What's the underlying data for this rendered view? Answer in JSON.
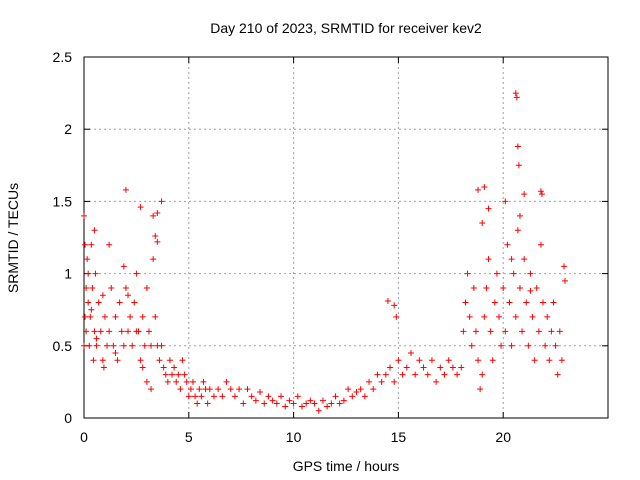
{
  "chart_data": {
    "type": "scatter",
    "title": "Day 210 of 2023, SRMTID for receiver kev2",
    "xlabel": "GPS time / hours",
    "ylabel": "SRMTID / TECUs",
    "xlim": [
      0,
      25
    ],
    "ylim": [
      0,
      2.5
    ],
    "x_ticks": [
      0,
      5,
      10,
      15,
      20
    ],
    "x_tick_labels": [
      "0",
      "5",
      "10",
      "15",
      "20"
    ],
    "y_ticks": [
      0,
      0.5,
      1,
      1.5,
      2,
      2.5
    ],
    "y_tick_labels": [
      "0",
      "0.5",
      "1",
      "1.5",
      "2",
      "2.5"
    ],
    "grid": true,
    "marker": "plus",
    "series": [
      {
        "name": "kev2",
        "color": "#ff0000",
        "x": [
          0.0,
          0.05,
          0.1,
          0.1,
          0.15,
          0.2,
          0.25,
          0.3,
          0.35,
          0.4,
          0.45,
          0.5,
          0.55,
          0.6,
          0.7,
          0.8,
          0.9,
          1.0,
          1.1,
          1.2,
          1.3,
          1.4,
          1.5,
          1.6,
          1.7,
          1.8,
          1.9,
          2.0,
          2.1,
          2.2,
          2.3,
          2.4,
          2.5,
          2.6,
          2.7,
          2.8,
          2.9,
          3.0,
          3.1,
          3.2,
          3.3,
          3.4,
          3.5,
          3.6,
          3.7,
          3.8,
          3.9,
          4.0,
          4.1,
          4.2,
          4.3,
          4.4,
          4.5,
          4.6,
          4.7,
          4.8,
          4.9,
          5.0,
          5.1,
          5.2,
          5.3,
          5.4,
          5.5,
          5.6,
          5.7,
          5.8,
          5.9,
          6.0,
          6.2,
          6.4,
          6.6,
          6.8,
          7.0,
          7.2,
          7.4,
          7.6,
          7.8,
          8.0,
          8.2,
          8.4,
          8.6,
          8.8,
          9.0,
          9.2,
          9.4,
          9.6,
          9.8,
          10.0,
          10.2,
          10.4,
          10.6,
          10.8,
          11.0,
          11.2,
          11.4,
          11.6,
          11.8,
          12.0,
          12.2,
          12.4,
          12.6,
          12.8,
          13.0,
          13.2,
          13.4,
          13.6,
          13.8,
          14.0,
          14.2,
          14.4,
          14.6,
          14.8,
          15.0,
          15.2,
          15.4,
          15.6,
          15.8,
          16.0,
          16.2,
          16.4,
          16.6,
          16.8,
          17.0,
          17.2,
          17.4,
          17.6,
          17.8,
          18.0,
          18.1,
          18.2,
          18.3,
          18.4,
          18.5,
          18.6,
          18.7,
          18.8,
          18.9,
          19.0,
          19.1,
          19.2,
          19.3,
          19.4,
          19.5,
          19.6,
          19.7,
          19.8,
          19.9,
          20.0,
          20.1,
          20.2,
          20.3,
          20.4,
          20.5,
          20.6,
          20.7,
          20.8,
          20.9,
          21.0,
          21.1,
          21.2,
          21.3,
          21.4,
          21.5,
          21.6,
          21.7,
          21.8,
          21.9,
          22.0,
          22.1,
          22.2,
          22.3,
          22.4,
          22.5,
          22.6,
          22.7,
          22.8,
          0.0,
          0.05,
          0.2,
          0.35,
          0.5,
          0.6,
          0.9,
          1.2,
          1.5,
          1.9,
          2.1,
          2.5,
          2.8,
          3.0,
          3.2,
          3.4,
          3.5,
          3.7,
          0.95,
          2.0,
          2.7,
          3.3,
          3.5,
          14.5,
          14.8,
          14.9,
          18.8,
          19.0,
          19.1,
          19.3,
          20.1,
          20.4,
          20.6,
          20.65,
          20.7,
          20.75,
          20.8,
          21.0,
          21.3,
          21.8,
          21.85,
          22.9,
          22.95
        ],
        "y": [
          1.4,
          1.2,
          0.9,
          0.6,
          1.1,
          0.8,
          0.5,
          0.7,
          1.2,
          0.9,
          0.4,
          0.6,
          1.0,
          0.5,
          0.8,
          0.6,
          0.4,
          0.7,
          0.5,
          0.6,
          0.9,
          0.5,
          0.7,
          0.4,
          0.8,
          0.6,
          0.5,
          0.9,
          0.6,
          0.7,
          0.5,
          0.8,
          1.0,
          0.6,
          0.4,
          0.7,
          0.5,
          0.9,
          0.6,
          0.5,
          1.1,
          0.7,
          0.5,
          0.4,
          0.5,
          0.35,
          0.3,
          0.25,
          0.4,
          0.3,
          0.35,
          0.25,
          0.3,
          0.2,
          0.4,
          0.3,
          0.25,
          0.15,
          0.2,
          0.25,
          0.15,
          0.1,
          0.2,
          0.15,
          0.25,
          0.2,
          0.1,
          0.2,
          0.15,
          0.2,
          0.15,
          0.25,
          0.2,
          0.15,
          0.2,
          0.1,
          0.2,
          0.15,
          0.12,
          0.18,
          0.1,
          0.15,
          0.12,
          0.1,
          0.15,
          0.08,
          0.12,
          0.1,
          0.15,
          0.08,
          0.1,
          0.12,
          0.1,
          0.05,
          0.12,
          0.08,
          0.1,
          0.15,
          0.1,
          0.12,
          0.2,
          0.15,
          0.18,
          0.2,
          0.15,
          0.25,
          0.2,
          0.3,
          0.25,
          0.3,
          0.35,
          0.25,
          0.4,
          0.3,
          0.35,
          0.45,
          0.3,
          0.4,
          0.35,
          0.3,
          0.4,
          0.25,
          0.35,
          0.3,
          0.4,
          0.35,
          0.3,
          0.35,
          0.6,
          0.8,
          1.0,
          0.7,
          0.5,
          0.9,
          0.6,
          0.4,
          0.2,
          0.3,
          0.7,
          0.9,
          1.1,
          0.6,
          0.4,
          0.8,
          1.0,
          0.7,
          0.5,
          0.9,
          0.6,
          1.2,
          0.8,
          0.5,
          1.0,
          0.7,
          1.3,
          0.9,
          0.6,
          1.1,
          0.8,
          0.5,
          1.0,
          0.7,
          0.4,
          0.9,
          0.6,
          1.2,
          0.8,
          0.5,
          0.7,
          0.4,
          0.6,
          0.8,
          0.5,
          0.3,
          0.6,
          0.4,
          0.5,
          0.7,
          1.0,
          0.75,
          1.3,
          0.55,
          0.85,
          1.2,
          0.45,
          1.05,
          0.85,
          0.6,
          0.35,
          0.25,
          0.2,
          1.26,
          1.42,
          1.5,
          0.35,
          1.58,
          1.46,
          1.4,
          1.22,
          0.81,
          0.78,
          0.7,
          1.58,
          1.35,
          1.6,
          1.45,
          1.5,
          1.1,
          2.25,
          2.22,
          1.88,
          1.75,
          1.4,
          1.55,
          0.88,
          1.57,
          1.55,
          1.05,
          0.95
        ]
      }
    ]
  }
}
